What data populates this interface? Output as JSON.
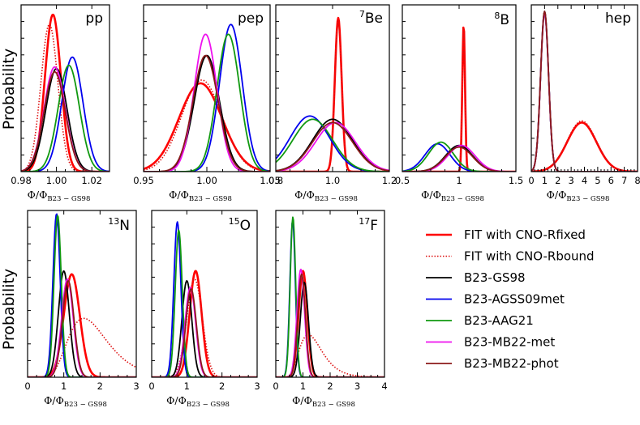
{
  "figure": {
    "y_axis_label": "Probability",
    "x_axis_label_main": "Φ/Φ",
    "x_axis_label_sub": "B23 − GS98"
  },
  "series_styles": [
    {
      "name": "FIT with CNO-Rfixed",
      "color": "#ff0000",
      "dash": "solid",
      "width": 2.6
    },
    {
      "name": "FIT with CNO-Rbound",
      "color": "#dd1111",
      "dash": "dotted",
      "width": 1.6
    },
    {
      "name": "B23-GS98",
      "color": "#000000",
      "dash": "solid",
      "width": 1.8
    },
    {
      "name": "B23-AGSS09met",
      "color": "#0000ee",
      "dash": "solid",
      "width": 1.8
    },
    {
      "name": "B23-AAG21",
      "color": "#119911",
      "dash": "solid",
      "width": 1.8
    },
    {
      "name": "B23-MB22-met",
      "color": "#ee11ee",
      "dash": "solid",
      "width": 1.8
    },
    {
      "name": "B23-MB22-phot",
      "color": "#8b1a1a",
      "dash": "solid",
      "width": 1.8
    }
  ],
  "legend": {
    "items": [
      "FIT with CNO-Rfixed",
      "FIT with CNO-Rbound",
      "B23-GS98",
      "B23-AGSS09met",
      "B23-AAG21",
      "B23-MB22-met",
      "B23-MB22-phot"
    ]
  },
  "chart_data": [
    {
      "type": "line",
      "panel": "pp",
      "label_sup": "",
      "label_main": "pp",
      "xlim": [
        0.98,
        1.03
      ],
      "xticks": [
        0.98,
        1.0,
        1.02
      ],
      "tick_labels": [
        "0.98",
        "1.00",
        "1.02"
      ],
      "series": [
        {
          "name": "FIT with CNO-Rfixed",
          "model": "gauss",
          "mu": 0.998,
          "sigma": 0.0045,
          "height": 0.96
        },
        {
          "name": "FIT with CNO-Rbound",
          "model": "gauss",
          "mu": 0.996,
          "sigma": 0.0048,
          "height": 0.9
        },
        {
          "name": "B23-GS98",
          "model": "gauss",
          "mu": 1.0,
          "sigma": 0.006,
          "height": 0.63
        },
        {
          "name": "B23-AGSS09met",
          "model": "gauss",
          "mu": 1.009,
          "sigma": 0.006,
          "height": 0.7
        },
        {
          "name": "B23-AAG21",
          "model": "gauss",
          "mu": 1.007,
          "sigma": 0.006,
          "height": 0.65
        },
        {
          "name": "B23-MB22-met",
          "model": "gauss",
          "mu": 0.999,
          "sigma": 0.006,
          "height": 0.64
        },
        {
          "name": "B23-MB22-phot",
          "model": "gauss",
          "mu": 0.999,
          "sigma": 0.006,
          "height": 0.61
        }
      ]
    },
    {
      "type": "line",
      "panel": "pep",
      "label_sup": "",
      "label_main": "pep",
      "xlim": [
        0.95,
        1.05
      ],
      "xticks": [
        0.95,
        1.0,
        1.05
      ],
      "tick_labels": [
        "0.95",
        "1.00",
        "1.05"
      ],
      "series": [
        {
          "name": "FIT with CNO-Rfixed",
          "model": "gauss",
          "mu": 0.995,
          "sigma": 0.017,
          "height": 0.54
        },
        {
          "name": "FIT with CNO-Rbound",
          "model": "gauss",
          "mu": 0.996,
          "sigma": 0.016,
          "height": 0.56
        },
        {
          "name": "B23-GS98",
          "model": "gauss",
          "mu": 1.0,
          "sigma": 0.01,
          "height": 0.71
        },
        {
          "name": "B23-AGSS09met",
          "model": "gauss",
          "mu": 1.019,
          "sigma": 0.009,
          "height": 0.9
        },
        {
          "name": "B23-AAG21",
          "model": "gauss",
          "mu": 1.017,
          "sigma": 0.009,
          "height": 0.84
        },
        {
          "name": "B23-MB22-met",
          "model": "gauss",
          "mu": 0.999,
          "sigma": 0.009,
          "height": 0.84
        },
        {
          "name": "B23-MB22-phot",
          "model": "gauss",
          "mu": 0.999,
          "sigma": 0.01,
          "height": 0.71
        }
      ]
    },
    {
      "type": "line",
      "panel": "Be7",
      "label_sup": "7",
      "label_main": "Be",
      "xlim": [
        0.8,
        1.2
      ],
      "xticks": [
        0.8,
        1.0,
        1.2
      ],
      "tick_labels": [
        "0.8",
        "1.0",
        "1.2"
      ],
      "series": [
        {
          "name": "FIT with CNO-Rfixed",
          "model": "gauss",
          "mu": 1.02,
          "sigma": 0.012,
          "height": 0.94
        },
        {
          "name": "FIT with CNO-Rbound",
          "model": "gauss",
          "mu": 1.02,
          "sigma": 0.012,
          "height": 0.92
        },
        {
          "name": "B23-GS98",
          "model": "gauss",
          "mu": 1.0,
          "sigma": 0.07,
          "height": 0.32
        },
        {
          "name": "B23-AGSS09met",
          "model": "gauss",
          "mu": 0.92,
          "sigma": 0.07,
          "height": 0.34
        },
        {
          "name": "B23-AAG21",
          "model": "gauss",
          "mu": 0.93,
          "sigma": 0.07,
          "height": 0.32
        },
        {
          "name": "B23-MB22-met",
          "model": "gauss",
          "mu": 1.01,
          "sigma": 0.07,
          "height": 0.3
        },
        {
          "name": "B23-MB22-phot",
          "model": "gauss",
          "mu": 1.0,
          "sigma": 0.07,
          "height": 0.3
        }
      ]
    },
    {
      "type": "line",
      "panel": "B8",
      "label_sup": "8",
      "label_main": "B",
      "xlim": [
        0.5,
        1.5
      ],
      "xticks": [
        0.5,
        1.0,
        1.5
      ],
      "tick_labels": [
        "0.5",
        "1",
        "1.5"
      ],
      "series": [
        {
          "name": "FIT with CNO-Rfixed",
          "model": "gauss",
          "mu": 1.04,
          "sigma": 0.012,
          "height": 0.9
        },
        {
          "name": "FIT with CNO-Rbound",
          "model": "gauss",
          "mu": 1.04,
          "sigma": 0.012,
          "height": 0.89
        },
        {
          "name": "B23-GS98",
          "model": "gauss",
          "mu": 1.0,
          "sigma": 0.12,
          "height": 0.16
        },
        {
          "name": "B23-AGSS09met",
          "model": "gauss",
          "mu": 0.81,
          "sigma": 0.11,
          "height": 0.17
        },
        {
          "name": "B23-AAG21",
          "model": "gauss",
          "mu": 0.84,
          "sigma": 0.11,
          "height": 0.18
        },
        {
          "name": "B23-MB22-met",
          "model": "gauss",
          "mu": 1.02,
          "sigma": 0.12,
          "height": 0.16
        },
        {
          "name": "B23-MB22-phot",
          "model": "gauss",
          "mu": 1.0,
          "sigma": 0.12,
          "height": 0.15
        }
      ]
    },
    {
      "type": "line",
      "panel": "hep",
      "label_sup": "",
      "label_main": "hep",
      "xlim": [
        0,
        8
      ],
      "xticks": [
        0,
        1,
        2,
        3,
        4,
        5,
        6,
        7,
        8
      ],
      "tick_labels": [
        "0",
        "1",
        "2",
        "3",
        "4",
        "5",
        "6",
        "7",
        "8"
      ],
      "series": [
        {
          "name": "FIT with CNO-Rfixed",
          "model": "gauss",
          "mu": 3.8,
          "sigma": 1.1,
          "height": 0.3
        },
        {
          "name": "FIT with CNO-Rbound",
          "model": "gauss",
          "mu": 3.8,
          "sigma": 1.1,
          "height": 0.31
        },
        {
          "name": "B23-GS98",
          "model": "gauss",
          "mu": 1.0,
          "sigma": 0.3,
          "height": 0.98
        },
        {
          "name": "B23-AGSS09met",
          "model": "gauss",
          "mu": 1.0,
          "sigma": 0.3,
          "height": 0.97
        },
        {
          "name": "B23-AAG21",
          "model": "gauss",
          "mu": 1.0,
          "sigma": 0.3,
          "height": 0.97
        },
        {
          "name": "B23-MB22-met",
          "model": "gauss",
          "mu": 1.0,
          "sigma": 0.3,
          "height": 0.97
        },
        {
          "name": "B23-MB22-phot",
          "model": "gauss",
          "mu": 1.0,
          "sigma": 0.3,
          "height": 0.98
        }
      ]
    },
    {
      "type": "line",
      "panel": "N13",
      "label_sup": "13",
      "label_main": "N",
      "xlim": [
        0,
        3
      ],
      "xticks": [
        0,
        1,
        2,
        3
      ],
      "tick_labels": [
        "0",
        "1",
        "2",
        "3"
      ],
      "series": [
        {
          "name": "FIT with CNO-Rfixed",
          "model": "gauss",
          "mu": 1.22,
          "sigma": 0.22,
          "height": 0.63
        },
        {
          "name": "FIT with CNO-Rbound",
          "model": "lognorm",
          "mu": 1.55,
          "sigma": 0.3,
          "height": 0.36
        },
        {
          "name": "B23-GS98",
          "model": "gauss",
          "mu": 1.0,
          "sigma": 0.15,
          "height": 0.65
        },
        {
          "name": "B23-AGSS09met",
          "model": "gauss",
          "mu": 0.8,
          "sigma": 0.1,
          "height": 1.0
        },
        {
          "name": "B23-AAG21",
          "model": "gauss",
          "mu": 0.83,
          "sigma": 0.1,
          "height": 0.99
        },
        {
          "name": "B23-MB22-met",
          "model": "gauss",
          "mu": 1.1,
          "sigma": 0.16,
          "height": 0.6
        },
        {
          "name": "B23-MB22-phot",
          "model": "gauss",
          "mu": 1.12,
          "sigma": 0.16,
          "height": 0.59
        }
      ]
    },
    {
      "type": "line",
      "panel": "O15",
      "label_sup": "15",
      "label_main": "O",
      "xlim": [
        0,
        3
      ],
      "xticks": [
        0,
        1,
        2,
        3
      ],
      "tick_labels": [
        "0",
        "1",
        "2",
        "3"
      ],
      "series": [
        {
          "name": "FIT with CNO-Rfixed",
          "model": "gauss",
          "mu": 1.25,
          "sigma": 0.17,
          "height": 0.65
        },
        {
          "name": "FIT with CNO-Rbound",
          "model": "gauss",
          "mu": 1.22,
          "sigma": 0.22,
          "height": 0.6
        },
        {
          "name": "B23-GS98",
          "model": "gauss",
          "mu": 1.0,
          "sigma": 0.14,
          "height": 0.59
        },
        {
          "name": "B23-AGSS09met",
          "model": "gauss",
          "mu": 0.73,
          "sigma": 0.1,
          "height": 0.95
        },
        {
          "name": "B23-AAG21",
          "model": "gauss",
          "mu": 0.77,
          "sigma": 0.1,
          "height": 0.9
        },
        {
          "name": "B23-MB22-met",
          "model": "gauss",
          "mu": 1.1,
          "sigma": 0.15,
          "height": 0.55
        },
        {
          "name": "B23-MB22-phot",
          "model": "gauss",
          "mu": 1.12,
          "sigma": 0.15,
          "height": 0.54
        }
      ]
    },
    {
      "type": "line",
      "panel": "F17",
      "label_sup": "17",
      "label_main": "F",
      "xlim": [
        0,
        4
      ],
      "xticks": [
        0,
        1,
        2,
        3,
        4
      ],
      "tick_labels": [
        "0",
        "1",
        "2",
        "3",
        "4"
      ],
      "series": [
        {
          "name": "FIT with CNO-Rfixed",
          "model": "gauss",
          "mu": 1.0,
          "sigma": 0.16,
          "height": 0.65
        },
        {
          "name": "FIT with CNO-Rbound",
          "model": "lognorm",
          "mu": 1.2,
          "sigma": 0.55,
          "height": 0.26
        },
        {
          "name": "B23-GS98",
          "model": "gauss",
          "mu": 1.05,
          "sigma": 0.15,
          "height": 0.58
        },
        {
          "name": "B23-AGSS09met",
          "model": "gauss",
          "mu": 0.62,
          "sigma": 0.1,
          "height": 0.96
        },
        {
          "name": "B23-AAG21",
          "model": "gauss",
          "mu": 0.63,
          "sigma": 0.1,
          "height": 0.98
        },
        {
          "name": "B23-MB22-met",
          "model": "gauss",
          "mu": 0.92,
          "sigma": 0.14,
          "height": 0.66
        },
        {
          "name": "B23-MB22-phot",
          "model": "gauss",
          "mu": 0.95,
          "sigma": 0.14,
          "height": 0.63
        }
      ]
    }
  ]
}
